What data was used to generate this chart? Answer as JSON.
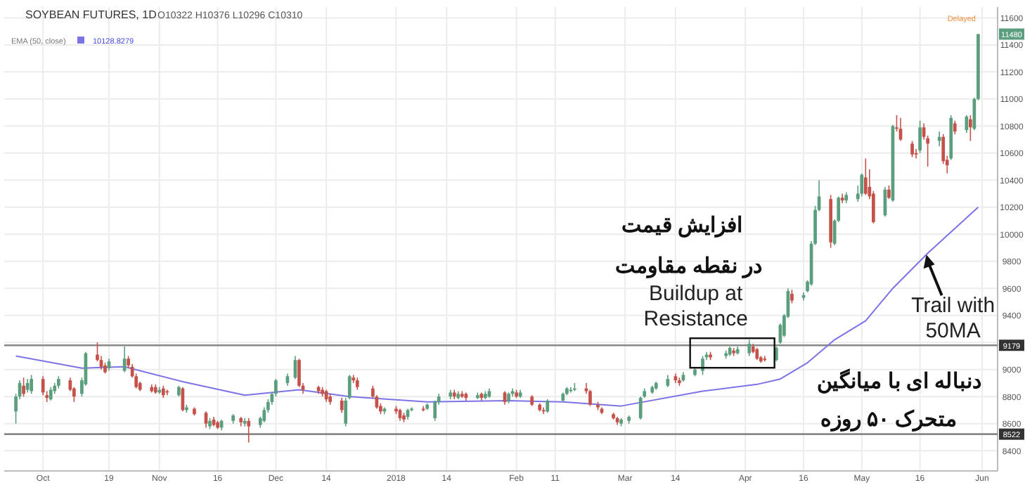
{
  "chart_data": {
    "type": "candlestick",
    "title": "SOYBEAN FUTURES, 1D",
    "subtitle": "O10322 H10376 L10296 C10310",
    "x": [
      "2017-09-25",
      "2017-09-26",
      "2017-09-27",
      "2017-09-28",
      "2017-09-29",
      "2017-10-02",
      "2017-10-03",
      "2017-10-04",
      "2017-10-05",
      "2017-10-06",
      "2017-10-09",
      "2017-10-10",
      "2017-10-12",
      "2017-10-13",
      "2017-10-16",
      "2017-10-17",
      "2017-10-18",
      "2017-10-19",
      "2017-10-23",
      "2017-10-24",
      "2017-10-25",
      "2017-10-26",
      "2017-10-27",
      "2017-10-30",
      "2017-10-31",
      "2017-11-01",
      "2017-11-02",
      "2017-11-03",
      "2017-11-06",
      "2017-11-07",
      "2017-11-08",
      "2017-11-10",
      "2017-11-13",
      "2017-11-14",
      "2017-11-15",
      "2017-11-16",
      "2017-11-17",
      "2017-11-20",
      "2017-11-22",
      "2017-11-23",
      "2017-11-24",
      "2017-11-27",
      "2017-11-28",
      "2017-11-29",
      "2017-11-30",
      "2017-12-01",
      "2017-12-04",
      "2017-12-06",
      "2017-12-07",
      "2017-12-08",
      "2017-12-12",
      "2017-12-13",
      "2017-12-14",
      "2017-12-15",
      "2017-12-18",
      "2017-12-19",
      "2017-12-20",
      "2017-12-21",
      "2017-12-22",
      "2017-12-26",
      "2017-12-27",
      "2017-12-28",
      "2017-12-29",
      "2018-01-01",
      "2018-01-02",
      "2018-01-03",
      "2018-01-04",
      "2018-01-05",
      "2018-01-08",
      "2018-01-09",
      "2018-01-11",
      "2018-01-12",
      "2018-01-15",
      "2018-01-16",
      "2018-01-17",
      "2018-01-18",
      "2018-01-19",
      "2018-01-22",
      "2018-01-23",
      "2018-01-24",
      "2018-01-25",
      "2018-01-29",
      "2018-01-30",
      "2018-01-31",
      "2018-02-01",
      "2018-02-02",
      "2018-02-05",
      "2018-02-07",
      "2018-02-08",
      "2018-02-09",
      "2018-02-13",
      "2018-02-14",
      "2018-02-15",
      "2018-02-16",
      "2018-02-19",
      "2018-02-20",
      "2018-02-22",
      "2018-02-23",
      "2018-02-26",
      "2018-02-27",
      "2018-02-28",
      "2018-03-02",
      "2018-03-05",
      "2018-03-06",
      "2018-03-08",
      "2018-03-09",
      "2018-03-12",
      "2018-03-14",
      "2018-03-15",
      "2018-03-16",
      "2018-03-19",
      "2018-03-21",
      "2018-03-22",
      "2018-03-23",
      "2018-03-27",
      "2018-03-28",
      "2018-03-29",
      "2018-03-30",
      "2018-04-02",
      "2018-04-03",
      "2018-04-04",
      "2018-04-05",
      "2018-04-06",
      "2018-04-09",
      "2018-04-10",
      "2018-04-11",
      "2018-04-12",
      "2018-04-13",
      "2018-04-16",
      "2018-04-17",
      "2018-04-18",
      "2018-04-19",
      "2018-04-20",
      "2018-04-23",
      "2018-04-24",
      "2018-04-25",
      "2018-04-26",
      "2018-04-27",
      "2018-04-30",
      "2018-05-01",
      "2018-05-02",
      "2018-05-03",
      "2018-05-04",
      "2018-05-07",
      "2018-05-08",
      "2018-05-09",
      "2018-05-10",
      "2018-05-11",
      "2018-05-14",
      "2018-05-15",
      "2018-05-16",
      "2018-05-17",
      "2018-05-18",
      "2018-05-21",
      "2018-05-22",
      "2018-05-23",
      "2018-05-24",
      "2018-05-25",
      "2018-05-28",
      "2018-05-29",
      "2018-05-30",
      "2018-05-31"
    ],
    "ohlc": [
      [
        8690,
        8820,
        8600,
        8800
      ],
      [
        8800,
        8920,
        8780,
        8900
      ],
      [
        8880,
        8940,
        8800,
        8820
      ],
      [
        8850,
        8930,
        8830,
        8900
      ],
      [
        8840,
        8960,
        8820,
        8930
      ],
      [
        8930,
        8950,
        8810,
        8830
      ],
      [
        8810,
        8840,
        8760,
        8790
      ],
      [
        8780,
        8870,
        8770,
        8850
      ],
      [
        8840,
        8900,
        8820,
        8880
      ],
      [
        8880,
        8950,
        8860,
        8930
      ],
      [
        8920,
        8940,
        8840,
        8850
      ],
      [
        8860,
        8870,
        8760,
        8800
      ],
      [
        8820,
        8940,
        8800,
        8920
      ],
      [
        8890,
        9130,
        8880,
        9120
      ],
      [
        9110,
        9200,
        9060,
        9070
      ],
      [
        9070,
        9100,
        9000,
        9020
      ],
      [
        9030,
        9050,
        8970,
        8980
      ],
      [
        9010,
        9080,
        8990,
        9060
      ],
      [
        8990,
        9170,
        8980,
        9080
      ],
      [
        9080,
        9100,
        9010,
        9030
      ],
      [
        9020,
        9040,
        8940,
        8950
      ],
      [
        8950,
        8970,
        8860,
        8870
      ],
      [
        8900,
        8910,
        8840,
        8850
      ],
      [
        8870,
        8890,
        8830,
        8840
      ],
      [
        8870,
        8890,
        8820,
        8830
      ],
      [
        8830,
        8870,
        8820,
        8850
      ],
      [
        8860,
        8880,
        8790,
        8810
      ],
      [
        8840,
        8850,
        8810,
        8830
      ],
      [
        8810,
        8880,
        8800,
        8870
      ],
      [
        8860,
        8870,
        8690,
        8700
      ],
      [
        8700,
        8740,
        8680,
        8720
      ],
      [
        8710,
        8720,
        8660,
        8670
      ],
      [
        8680,
        8690,
        8570,
        8600
      ],
      [
        8580,
        8640,
        8560,
        8620
      ],
      [
        8630,
        8650,
        8580,
        8590
      ],
      [
        8610,
        8620,
        8560,
        8570
      ],
      [
        8570,
        8630,
        8550,
        8620
      ],
      [
        8620,
        8670,
        8600,
        8660
      ],
      [
        8640,
        8650,
        8580,
        8610
      ],
      [
        8600,
        8640,
        8580,
        8620
      ],
      [
        8620,
        8640,
        8460,
        8580
      ],
      [
        8590,
        8650,
        8570,
        8640
      ],
      [
        8620,
        8720,
        8610,
        8700
      ],
      [
        8700,
        8780,
        8680,
        8760
      ],
      [
        8760,
        8830,
        8740,
        8820
      ],
      [
        8820,
        8930,
        8800,
        8920
      ],
      [
        8900,
        8970,
        8880,
        8950
      ],
      [
        8940,
        9100,
        8930,
        9070
      ],
      [
        9070,
        9080,
        8870,
        8880
      ],
      [
        8880,
        8900,
        8820,
        8850
      ],
      [
        8870,
        8880,
        8820,
        8840
      ],
      [
        8850,
        8870,
        8800,
        8820
      ],
      [
        8840,
        8850,
        8760,
        8780
      ],
      [
        8800,
        8820,
        8740,
        8760
      ],
      [
        8770,
        8790,
        8680,
        8700
      ],
      [
        8600,
        8790,
        8580,
        8770
      ],
      [
        8790,
        8960,
        8780,
        8950
      ],
      [
        8940,
        8960,
        8900,
        8920
      ],
      [
        8920,
        8940,
        8850,
        8870
      ],
      [
        8860,
        8880,
        8790,
        8800
      ],
      [
        8800,
        8810,
        8710,
        8720
      ],
      [
        8730,
        8750,
        8670,
        8690
      ],
      [
        8690,
        8720,
        8670,
        8710
      ],
      [
        8710,
        8730,
        8670,
        8690
      ],
      [
        8700,
        8710,
        8620,
        8640
      ],
      [
        8660,
        8680,
        8610,
        8630
      ],
      [
        8650,
        8710,
        8630,
        8700
      ],
      [
        8700,
        8720,
        8690,
        8710
      ],
      [
        8710,
        8730,
        8690,
        8700
      ],
      [
        8710,
        8750,
        8700,
        8740
      ],
      [
        8640,
        8770,
        8620,
        8760
      ],
      [
        8760,
        8820,
        8740,
        8800
      ],
      [
        8800,
        8850,
        8780,
        8830
      ],
      [
        8830,
        8850,
        8780,
        8800
      ],
      [
        8790,
        8840,
        8780,
        8820
      ],
      [
        8820,
        8840,
        8790,
        8800
      ],
      [
        8820,
        8830,
        8770,
        8790
      ],
      [
        8790,
        8830,
        8780,
        8810
      ],
      [
        8820,
        8830,
        8770,
        8790
      ],
      [
        8790,
        8840,
        8780,
        8820
      ],
      [
        8800,
        8860,
        8790,
        8840
      ],
      [
        8830,
        8840,
        8740,
        8760
      ],
      [
        8770,
        8830,
        8750,
        8820
      ],
      [
        8820,
        8860,
        8800,
        8840
      ],
      [
        8830,
        8850,
        8790,
        8800
      ],
      [
        8800,
        8850,
        8790,
        8830
      ],
      [
        8800,
        8810,
        8730,
        8740
      ],
      [
        8740,
        8750,
        8690,
        8700
      ],
      [
        8700,
        8720,
        8670,
        8690
      ],
      [
        8690,
        8780,
        8680,
        8770
      ],
      [
        8770,
        8830,
        8760,
        8820
      ],
      [
        8820,
        8870,
        8810,
        8860
      ],
      [
        8840,
        8870,
        8830,
        8850
      ],
      [
        8850,
        8900,
        8840,
        8860
      ],
      [
        8860,
        8900,
        8820,
        8840
      ],
      [
        8840,
        8850,
        8730,
        8740
      ],
      [
        8740,
        8760,
        8700,
        8720
      ],
      [
        8710,
        8720,
        8670,
        8680
      ],
      [
        8670,
        8680,
        8630,
        8640
      ],
      [
        8640,
        8650,
        8590,
        8610
      ],
      [
        8600,
        8640,
        8580,
        8630
      ],
      [
        8620,
        8660,
        8600,
        8650
      ],
      [
        8640,
        8800,
        8630,
        8790
      ],
      [
        8800,
        8860,
        8790,
        8840
      ],
      [
        8830,
        8880,
        8820,
        8870
      ],
      [
        8860,
        8910,
        8850,
        8900
      ],
      [
        8880,
        8960,
        8870,
        8930
      ],
      [
        8950,
        8970,
        8900,
        8920
      ],
      [
        8920,
        8940,
        8880,
        8900
      ],
      [
        8920,
        8980,
        8910,
        8960
      ],
      [
        8960,
        9020,
        8950,
        9000
      ],
      [
        8990,
        9100,
        8960,
        9080
      ],
      [
        9090,
        9130,
        9070,
        9110
      ],
      [
        9110,
        9130,
        9070,
        9090
      ],
      [
        9100,
        9140,
        9080,
        9120
      ],
      [
        9110,
        9170,
        9100,
        9160
      ],
      [
        9140,
        9160,
        9100,
        9120
      ],
      [
        9120,
        9170,
        9110,
        9150
      ],
      [
        9120,
        9220,
        9100,
        9190
      ],
      [
        9170,
        9190,
        9120,
        9130
      ],
      [
        9150,
        9160,
        9070,
        9080
      ],
      [
        9090,
        9100,
        9050,
        9060
      ],
      [
        9080,
        9100,
        9060,
        9070
      ],
      [
        9070,
        9170,
        9060,
        9160
      ],
      [
        9200,
        9340,
        9190,
        9330
      ],
      [
        9250,
        9410,
        9240,
        9400
      ],
      [
        9390,
        9600,
        9380,
        9580
      ],
      [
        9560,
        9590,
        9490,
        9510
      ],
      [
        9530,
        9570,
        9510,
        9550
      ],
      [
        9580,
        9660,
        9570,
        9650
      ],
      [
        9630,
        9950,
        9620,
        9930
      ],
      [
        9930,
        10210,
        9920,
        10180
      ],
      [
        10180,
        10400,
        10170,
        10280
      ],
      [
        10260,
        10290,
        9900,
        9940
      ],
      [
        9930,
        10110,
        9920,
        10100
      ],
      [
        10100,
        10280,
        10090,
        10270
      ],
      [
        10270,
        10300,
        10230,
        10250
      ],
      [
        10250,
        10310,
        10230,
        10290
      ],
      [
        10260,
        10360,
        10240,
        10300
      ],
      [
        10300,
        10450,
        10280,
        10440
      ],
      [
        10420,
        10560,
        10290,
        10300
      ],
      [
        10350,
        10480,
        10260,
        10280
      ],
      [
        10300,
        10320,
        10080,
        10090
      ],
      [
        10140,
        10350,
        10130,
        10330
      ],
      [
        10330,
        10360,
        10260,
        10270
      ],
      [
        10250,
        10810,
        10240,
        10800
      ],
      [
        10790,
        10880,
        10760,
        10780
      ],
      [
        10780,
        10860,
        10690,
        10700
      ],
      [
        10670,
        10690,
        10570,
        10590
      ],
      [
        10600,
        10630,
        10560,
        10590
      ],
      [
        10620,
        10840,
        10600,
        10790
      ],
      [
        10790,
        10820,
        10700,
        10720
      ],
      [
        10710,
        10730,
        10500,
        10670
      ],
      [
        10690,
        10760,
        10650,
        10720
      ],
      [
        10720,
        10740,
        10520,
        10540
      ],
      [
        10550,
        10580,
        10450,
        10510
      ],
      [
        10560,
        10880,
        10550,
        10860
      ],
      [
        10820,
        10840,
        10740,
        10760
      ],
      [
        10770,
        10880,
        10750,
        10870
      ],
      [
        10850,
        10880,
        10690,
        10790
      ],
      [
        10780,
        11010,
        10770,
        11000
      ],
      [
        11000,
        11480,
        10990,
        11480
      ]
    ],
    "series": [
      {
        "name": "EMA (50, close)",
        "type": "line",
        "color": "#7b73e6",
        "x": [
          "2017-09-25",
          "2017-10-12",
          "2017-10-23",
          "2017-11-07",
          "2017-11-23",
          "2017-12-07",
          "2017-12-20",
          "2018-01-09",
          "2018-01-30",
          "2018-02-13",
          "2018-02-28",
          "2018-03-21",
          "2018-04-04",
          "2018-04-10",
          "2018-04-17",
          "2018-04-24",
          "2018-05-02",
          "2018-05-09",
          "2018-05-18",
          "2018-05-31"
        ],
        "values": [
          9100,
          9010,
          9020,
          8910,
          8810,
          8850,
          8800,
          8760,
          8770,
          8760,
          8730,
          8840,
          8890,
          8930,
          9050,
          9220,
          9360,
          9600,
          9860,
          10200
        ]
      }
    ],
    "xlim": [
      "2017-09-22",
      "2018-06-05"
    ],
    "ylim": [
      8250,
      11680
    ],
    "xticks": [
      {
        "value": "2017-10-02",
        "label": "Oct"
      },
      {
        "value": "2017-10-19",
        "label": "19"
      },
      {
        "value": "2017-11-01",
        "label": "Nov"
      },
      {
        "value": "2017-11-16",
        "label": "16"
      },
      {
        "value": "2017-12-01",
        "label": "Dec"
      },
      {
        "value": "2017-12-14",
        "label": "14"
      },
      {
        "value": "2018-01-01",
        "label": "2018"
      },
      {
        "value": "2018-01-14",
        "label": "14"
      },
      {
        "value": "2018-02-01",
        "label": "Feb"
      },
      {
        "value": "2018-02-11",
        "label": "11"
      },
      {
        "value": "2018-03-01",
        "label": "Mar"
      },
      {
        "value": "2018-03-14",
        "label": "14"
      },
      {
        "value": "2018-04-01",
        "label": "Apr"
      },
      {
        "value": "2018-04-16",
        "label": "16"
      },
      {
        "value": "2018-05-01",
        "label": "May"
      },
      {
        "value": "2018-05-16",
        "label": "16"
      },
      {
        "value": "2018-06-01",
        "label": "Jun"
      }
    ],
    "yticks": [
      8400,
      8600,
      8800,
      9000,
      9200,
      9400,
      9600,
      9800,
      10000,
      10200,
      10400,
      10600,
      10800,
      11000,
      11200,
      11400,
      11600
    ],
    "grid": true,
    "legend": "top left",
    "ref_lines": [
      {
        "axis": "y",
        "value": 9179,
        "label": "9179",
        "color": "#888888"
      },
      {
        "axis": "y",
        "value": 8522,
        "label": "8522",
        "color": "#888888"
      }
    ],
    "annotations": [
      "10128.8279",
      "Delayed",
      {
        "text": "11480",
        "x": "2018-05-31",
        "y": 11480
      },
      "افزایش قیمت",
      "در نقطه مقاومت",
      {
        "text": "Buildup at\nResistance",
        "x": "2018-03-29",
        "y": 9200
      },
      {
        "text": "Trail with\n50MA",
        "x": "2018-05-18",
        "y": 9860
      },
      "دنباله ای با میانگین",
      "متحرک ۵۰ روزه"
    ]
  }
}
